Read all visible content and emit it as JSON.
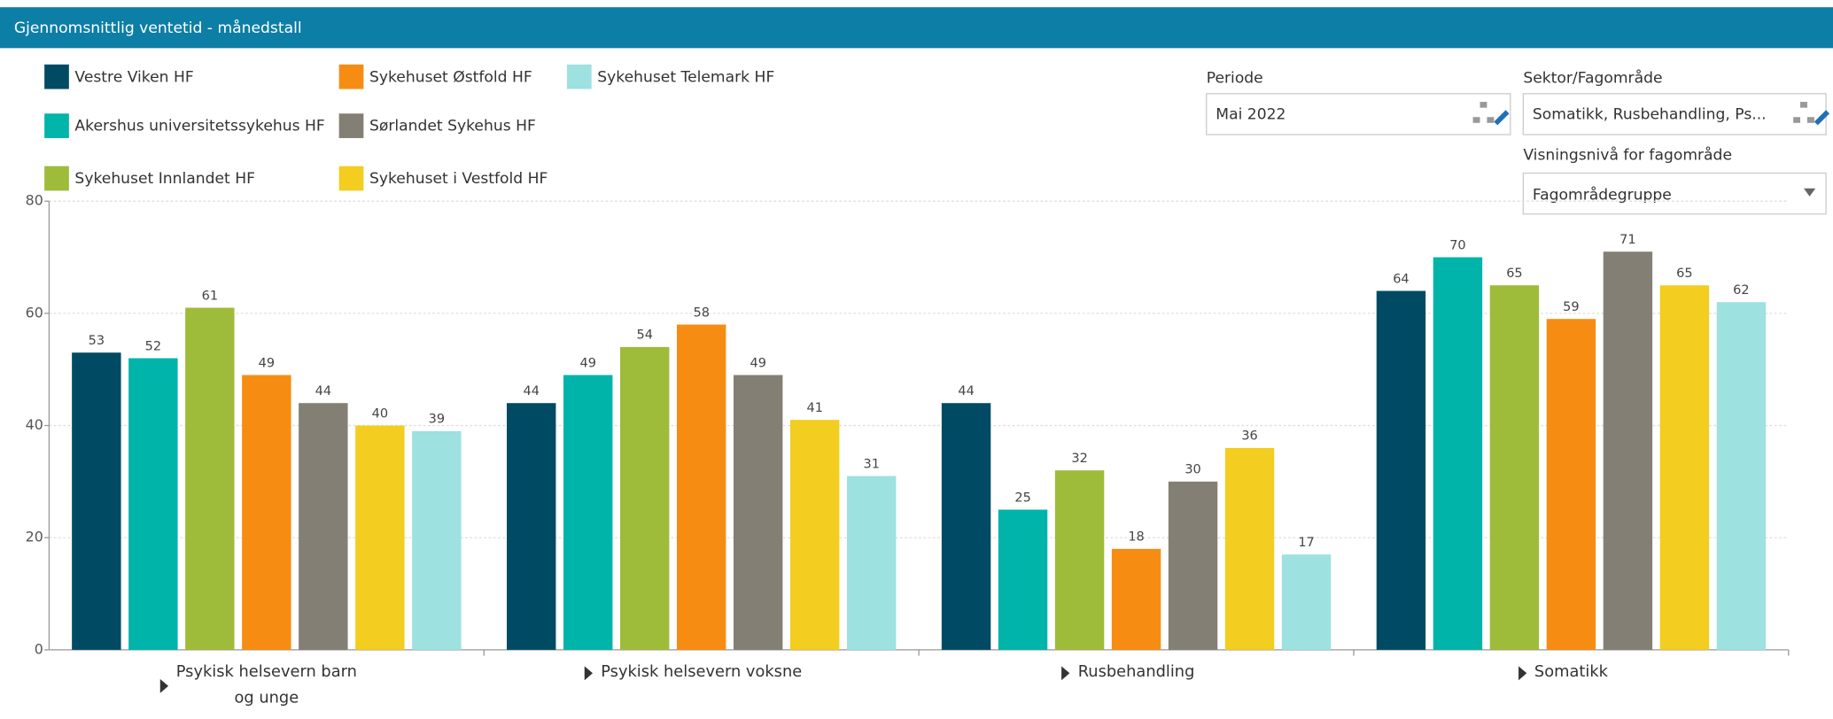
{
  "header": {
    "title": "Gjennomsnittlig ventetid - månedstall"
  },
  "filters": {
    "period_label": "Periode",
    "period_value": "Mai 2022",
    "sector_label": "Sektor/Fagområde",
    "sector_value": "Somatikk, Rusbehandling, Ps...",
    "level_label": "Visningsnivå for fagområde",
    "level_value": "Fagområdegruppe"
  },
  "chart_data": {
    "type": "bar",
    "categories": [
      "Psykisk helsevern barn og unge",
      "Psykisk helsevern voksne",
      "Rusbehandling",
      "Somatikk"
    ],
    "series": [
      {
        "name": "Vestre Viken HF",
        "color": "#004b63",
        "values": [
          53,
          44,
          44,
          64
        ]
      },
      {
        "name": "Akershus universitetssykehus HF",
        "color": "#00b4aa",
        "values": [
          52,
          49,
          25,
          70
        ]
      },
      {
        "name": "Sykehuset Innlandet HF",
        "color": "#9fbb3a",
        "values": [
          61,
          54,
          32,
          65
        ]
      },
      {
        "name": "Sykehuset Østfold HF",
        "color": "#f68d12",
        "values": [
          49,
          58,
          18,
          59
        ]
      },
      {
        "name": "Sørlandet Sykehus HF",
        "color": "#847f74",
        "values": [
          44,
          49,
          30,
          71
        ]
      },
      {
        "name": "Sykehuset i Vestfold HF",
        "color": "#f3cd1f",
        "values": [
          40,
          41,
          36,
          65
        ]
      },
      {
        "name": "Sykehuset Telemark HF",
        "color": "#9de1e0",
        "values": [
          39,
          31,
          17,
          62
        ]
      }
    ],
    "ylim": [
      0,
      80
    ],
    "yticks": [
      0,
      20,
      40,
      60,
      80
    ],
    "grid": true
  }
}
